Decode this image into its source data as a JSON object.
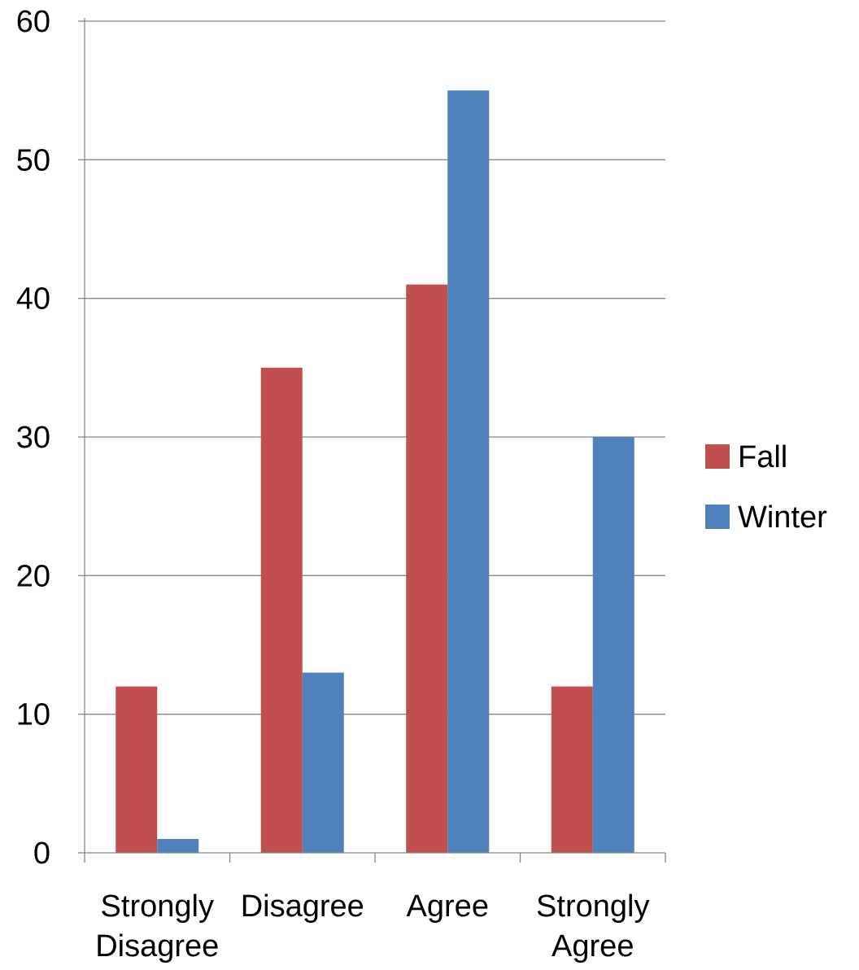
{
  "chart_data": {
    "type": "bar",
    "categories": [
      [
        "Strongly",
        "Disagree"
      ],
      [
        "Disagree"
      ],
      [
        "Agree"
      ],
      [
        "Strongly",
        "Agree"
      ]
    ],
    "series": [
      {
        "name": "Fall",
        "color": "#c0504d",
        "values": [
          12,
          35,
          41,
          12
        ]
      },
      {
        "name": "Winter",
        "color": "#4f81bd",
        "values": [
          1,
          13,
          55,
          30
        ]
      }
    ],
    "ylim": [
      0,
      60
    ],
    "yticks": [
      "0",
      "10",
      "20",
      "30",
      "40",
      "50",
      "60"
    ],
    "grid": true,
    "legend_position": "right",
    "title": "",
    "xlabel": "",
    "ylabel": ""
  }
}
